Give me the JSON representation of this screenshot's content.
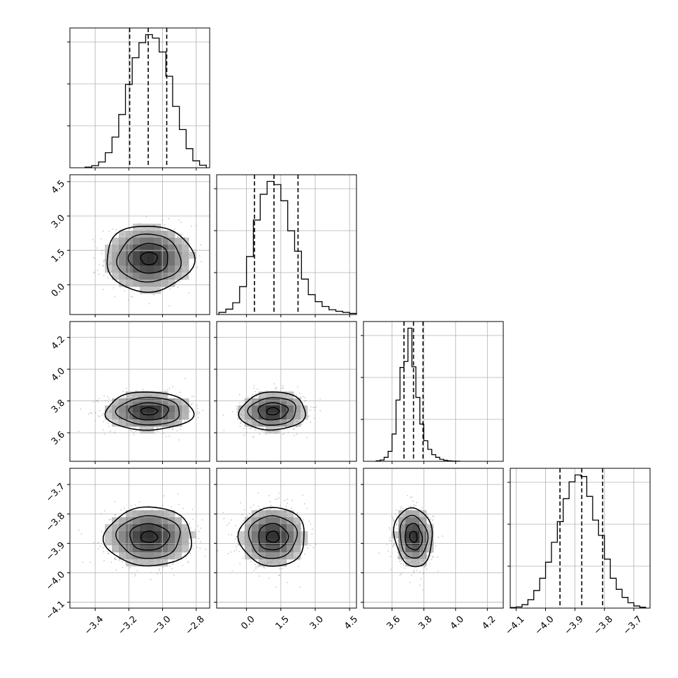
{
  "chart_data": {
    "type": "corner",
    "grid": true,
    "colors": {
      "line": "#000000",
      "grid": "#b0b0b0",
      "points": "#9a9a9a",
      "background": "#ffffff"
    },
    "parameters": [
      {
        "range": [
          -3.55,
          -2.72
        ],
        "ticks": [
          -3.4,
          -3.2,
          -3.0,
          -2.8
        ],
        "tick_labels": [
          "−3.4",
          "−3.2",
          "−3.0",
          "−2.8"
        ],
        "quantiles": [
          -3.195,
          -3.085,
          -2.975
        ],
        "histogram": {
          "edges": [
            -3.46,
            -3.42,
            -3.38,
            -3.34,
            -3.3,
            -3.26,
            -3.22,
            -3.18,
            -3.14,
            -3.1,
            -3.06,
            -3.02,
            -2.98,
            -2.94,
            -2.9,
            -2.86,
            -2.82,
            -2.78,
            -2.74
          ],
          "counts": [
            5,
            18,
            50,
            130,
            265,
            460,
            720,
            950,
            1080,
            1150,
            1120,
            1000,
            790,
            530,
            330,
            165,
            60,
            22
          ]
        }
      },
      {
        "range": [
          -1.3,
          4.8
        ],
        "ticks": [
          0.0,
          1.5,
          3.0,
          4.5
        ],
        "tick_labels": [
          "0.0",
          "1.5",
          "3.0",
          "4.5"
        ],
        "quantiles": [
          0.35,
          1.2,
          2.25
        ],
        "histogram": {
          "edges": [
            -1.2,
            -0.9,
            -0.6,
            -0.3,
            0.0,
            0.3,
            0.6,
            0.9,
            1.2,
            1.5,
            1.8,
            2.1,
            2.4,
            2.7,
            3.0,
            3.3,
            3.6,
            3.9,
            4.2,
            4.5,
            4.8
          ],
          "counts": [
            20,
            50,
            110,
            260,
            540,
            880,
            1120,
            1240,
            1210,
            1060,
            780,
            590,
            330,
            185,
            120,
            75,
            45,
            30,
            20,
            10
          ]
        }
      },
      {
        "range": [
          3.42,
          4.3
        ],
        "ticks": [
          3.6,
          3.8,
          4.0,
          4.2
        ],
        "tick_labels": [
          "3.6",
          "3.8",
          "4.0",
          "4.2"
        ],
        "quantiles": [
          3.675,
          3.735,
          3.795
        ],
        "histogram": {
          "edges": [
            3.5,
            3.525,
            3.55,
            3.575,
            3.6,
            3.625,
            3.65,
            3.675,
            3.7,
            3.725,
            3.75,
            3.775,
            3.8,
            3.825,
            3.85,
            3.875,
            3.9,
            3.925,
            3.95,
            3.975,
            4.0,
            4.025
          ],
          "counts": [
            8,
            20,
            60,
            150,
            410,
            920,
            1410,
            1500,
            2000,
            1420,
            960,
            560,
            310,
            180,
            100,
            60,
            30,
            15,
            8,
            4,
            2
          ]
        }
      },
      {
        "range": [
          -4.12,
          -3.645
        ],
        "ticks": [
          -4.1,
          -4.0,
          -3.9,
          -3.8,
          -3.7
        ],
        "tick_labels": [
          "−4.1",
          "−4.0",
          "−3.9",
          "−3.8",
          "−3.7"
        ],
        "quantiles": [
          -3.951,
          -3.877,
          -3.806
        ],
        "histogram": {
          "edges": [
            -4.12,
            -4.1,
            -4.08,
            -4.06,
            -4.04,
            -4.02,
            -4.0,
            -3.98,
            -3.96,
            -3.94,
            -3.92,
            -3.9,
            -3.88,
            -3.86,
            -3.84,
            -3.82,
            -3.8,
            -3.78,
            -3.76,
            -3.74,
            -3.72,
            -3.7,
            -3.68,
            -3.66
          ],
          "counts": [
            8,
            15,
            45,
            110,
            230,
            390,
            600,
            860,
            1130,
            1430,
            1650,
            1740,
            1720,
            1460,
            1150,
            950,
            640,
            390,
            245,
            140,
            70,
            28,
            12
          ]
        }
      }
    ],
    "pairs": [
      {
        "x": 0,
        "y": 1,
        "center": [
          -3.08,
          1.15
        ],
        "sd": [
          0.13,
          0.72
        ],
        "rho": 0.0
      },
      {
        "x": 0,
        "y": 2,
        "center": [
          -3.08,
          3.735
        ],
        "sd": [
          0.13,
          0.06
        ],
        "rho": 0.0
      },
      {
        "x": 1,
        "y": 2,
        "center": [
          1.15,
          3.735
        ],
        "sd": [
          0.72,
          0.06
        ],
        "rho": 0.05
      },
      {
        "x": 0,
        "y": 3,
        "center": [
          -3.08,
          -3.878
        ],
        "sd": [
          0.13,
          0.05
        ],
        "rho": 0.0
      },
      {
        "x": 1,
        "y": 3,
        "center": [
          1.15,
          -3.878
        ],
        "sd": [
          0.72,
          0.05
        ],
        "rho": 0.0
      },
      {
        "x": 2,
        "y": 3,
        "center": [
          3.735,
          -3.878
        ],
        "sd": [
          0.06,
          0.05
        ],
        "rho": -0.1
      }
    ]
  }
}
